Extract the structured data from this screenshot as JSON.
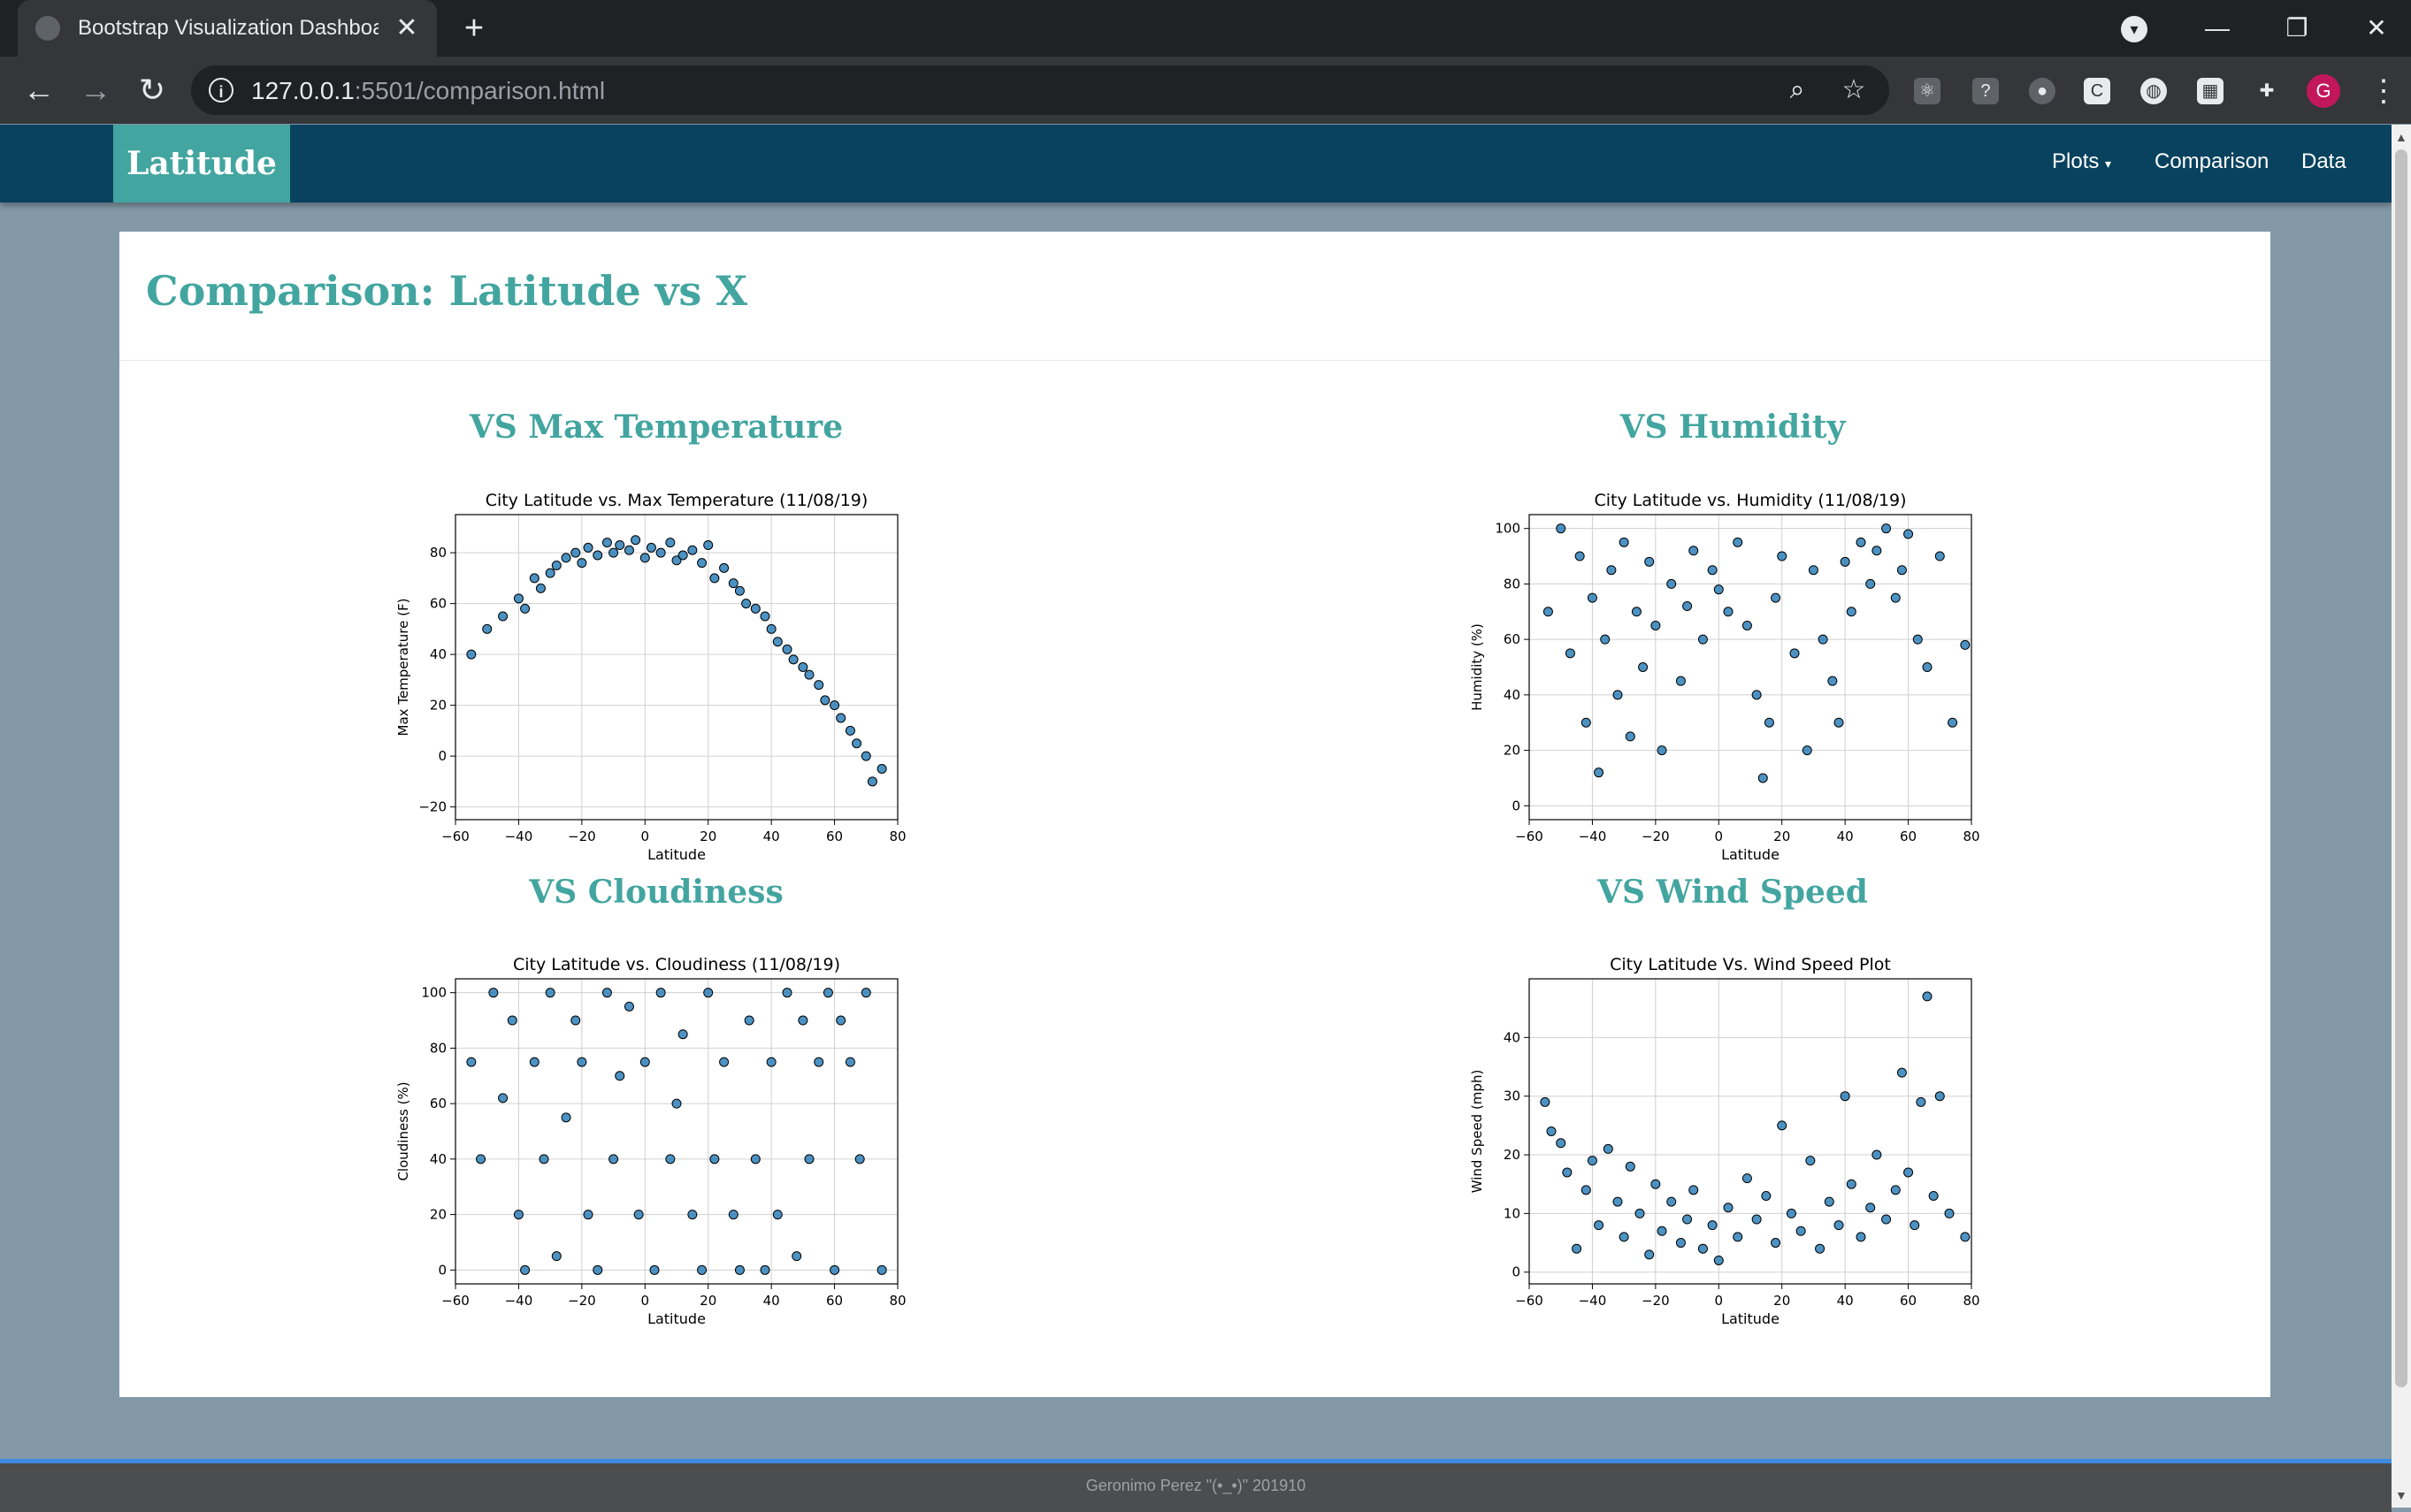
{
  "browser": {
    "tab_title": "Bootstrap Visualization Dashboard",
    "url_host": "127.0.0.1",
    "url_rest": ":5501/comparison.html",
    "avatar_letter": "G",
    "colors": {
      "tabbar": "#202124",
      "toolbar": "#35363a",
      "avatar": "#c2185b"
    }
  },
  "navbar": {
    "brand": "Latitude",
    "links": [
      "Plots",
      "Comparison",
      "Data"
    ],
    "colors": {
      "background": "#08425f",
      "brand": "#43a5a0"
    }
  },
  "main": {
    "title": "Comparison: Latitude vs X",
    "sections": [
      "VS Max Temperature",
      "VS Humidity",
      "VS Cloudiness",
      "VS Wind Speed"
    ]
  },
  "footer": {
    "text": "Geronimo Perez \"(•_•)\" 201910"
  },
  "chart_data": [
    {
      "type": "scatter",
      "title": "City Latitude vs. Max Temperature (11/08/19)",
      "xlabel": "Latitude",
      "ylabel": "Max Temperature (F)",
      "xlim": [
        -60,
        80
      ],
      "ylim": [
        -25,
        95
      ],
      "xticks": [
        -60,
        -40,
        -20,
        0,
        20,
        40,
        60,
        80
      ],
      "yticks": [
        -20,
        0,
        20,
        40,
        60,
        80
      ],
      "grid": true,
      "marker_color": "#1f77b4",
      "x": [
        -55,
        -50,
        -45,
        -40,
        -38,
        -35,
        -33,
        -30,
        -28,
        -25,
        -22,
        -20,
        -18,
        -15,
        -12,
        -10,
        -8,
        -5,
        -3,
        0,
        2,
        5,
        8,
        10,
        12,
        15,
        18,
        20,
        22,
        25,
        28,
        30,
        32,
        35,
        38,
        40,
        42,
        45,
        47,
        50,
        52,
        55,
        57,
        60,
        62,
        65,
        67,
        70,
        72,
        75
      ],
      "y": [
        40,
        50,
        55,
        62,
        58,
        70,
        66,
        72,
        75,
        78,
        80,
        76,
        82,
        79,
        84,
        80,
        83,
        81,
        85,
        78,
        82,
        80,
        84,
        77,
        79,
        81,
        76,
        83,
        70,
        74,
        68,
        65,
        60,
        58,
        55,
        50,
        45,
        42,
        38,
        35,
        32,
        28,
        22,
        20,
        15,
        10,
        5,
        0,
        -10,
        -5
      ]
    },
    {
      "type": "scatter",
      "title": "City Latitude vs. Humidity (11/08/19)",
      "xlabel": "Latitude",
      "ylabel": "Humidity (%)",
      "xlim": [
        -60,
        80
      ],
      "ylim": [
        -5,
        105
      ],
      "xticks": [
        -60,
        -40,
        -20,
        0,
        20,
        40,
        60,
        80
      ],
      "yticks": [
        0,
        20,
        40,
        60,
        80,
        100
      ],
      "grid": true,
      "marker_color": "#1f77b4",
      "x": [
        -54,
        -50,
        -47,
        -44,
        -42,
        -40,
        -38,
        -36,
        -34,
        -32,
        -30,
        -28,
        -26,
        -24,
        -22,
        -20,
        -18,
        -15,
        -12,
        -10,
        -8,
        -5,
        -2,
        0,
        3,
        6,
        9,
        12,
        14,
        16,
        18,
        20,
        24,
        28,
        30,
        33,
        36,
        38,
        40,
        42,
        45,
        48,
        50,
        53,
        56,
        58,
        60,
        63,
        66,
        70,
        74,
        78
      ],
      "y": [
        70,
        100,
        55,
        90,
        30,
        75,
        12,
        60,
        85,
        40,
        95,
        25,
        70,
        50,
        88,
        65,
        20,
        80,
        45,
        72,
        92,
        60,
        85,
        78,
        70,
        95,
        65,
        40,
        10,
        30,
        75,
        90,
        55,
        20,
        85,
        60,
        45,
        30,
        88,
        70,
        95,
        80,
        92,
        100,
        75,
        85,
        98,
        60,
        50,
        90,
        30,
        58
      ]
    },
    {
      "type": "scatter",
      "title": "City Latitude vs. Cloudiness (11/08/19)",
      "xlabel": "Latitude",
      "ylabel": "Cloudiness (%)",
      "xlim": [
        -60,
        80
      ],
      "ylim": [
        -5,
        105
      ],
      "xticks": [
        -60,
        -40,
        -20,
        0,
        20,
        40,
        60,
        80
      ],
      "yticks": [
        0,
        20,
        40,
        60,
        80,
        100
      ],
      "grid": true,
      "marker_color": "#1f77b4",
      "x": [
        -55,
        -52,
        -48,
        -45,
        -42,
        -40,
        -38,
        -35,
        -32,
        -30,
        -28,
        -25,
        -22,
        -20,
        -18,
        -15,
        -12,
        -10,
        -8,
        -5,
        -2,
        0,
        3,
        5,
        8,
        10,
        12,
        15,
        18,
        20,
        22,
        25,
        28,
        30,
        33,
        35,
        38,
        40,
        42,
        45,
        48,
        50,
        52,
        55,
        58,
        60,
        62,
        65,
        68,
        70,
        75
      ],
      "y": [
        75,
        40,
        100,
        62,
        90,
        20,
        0,
        75,
        40,
        100,
        5,
        55,
        90,
        75,
        20,
        0,
        100,
        40,
        70,
        95,
        20,
        75,
        0,
        100,
        40,
        60,
        85,
        20,
        0,
        100,
        40,
        75,
        20,
        0,
        90,
        40,
        0,
        75,
        20,
        100,
        5,
        90,
        40,
        75,
        100,
        0,
        90,
        75,
        40,
        100,
        0
      ]
    },
    {
      "type": "scatter",
      "title": "City Latitude Vs. Wind Speed Plot",
      "xlabel": "Latitude",
      "ylabel": "Wind Speed (mph)",
      "xlim": [
        -60,
        80
      ],
      "ylim": [
        -2,
        50
      ],
      "xticks": [
        -60,
        -40,
        -20,
        0,
        20,
        40,
        60,
        80
      ],
      "yticks": [
        0,
        10,
        20,
        30,
        40
      ],
      "grid": true,
      "marker_color": "#1f77b4",
      "x": [
        -55,
        -53,
        -50,
        -48,
        -45,
        -42,
        -40,
        -38,
        -35,
        -32,
        -30,
        -28,
        -25,
        -22,
        -20,
        -18,
        -15,
        -12,
        -10,
        -8,
        -5,
        -2,
        0,
        3,
        6,
        9,
        12,
        15,
        18,
        20,
        23,
        26,
        29,
        32,
        35,
        38,
        40,
        42,
        45,
        48,
        50,
        53,
        56,
        58,
        60,
        62,
        64,
        66,
        68,
        70,
        73,
        78
      ],
      "y": [
        29,
        24,
        22,
        17,
        4,
        14,
        19,
        8,
        21,
        12,
        6,
        18,
        10,
        3,
        15,
        7,
        12,
        5,
        9,
        14,
        4,
        8,
        2,
        11,
        6,
        16,
        9,
        13,
        5,
        25,
        10,
        7,
        19,
        4,
        12,
        8,
        30,
        15,
        6,
        11,
        20,
        9,
        14,
        34,
        17,
        8,
        29,
        47,
        13,
        30,
        10,
        6
      ]
    }
  ]
}
